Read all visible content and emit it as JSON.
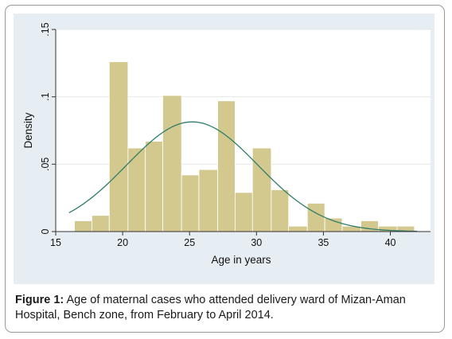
{
  "caption": {
    "label": "Figure 1:",
    "text": "Age of maternal cases who attended delivery ward of Mizan-Aman Hospital, Bench zone, from February to April 2014."
  },
  "chart_data": {
    "type": "bar",
    "subtype": "histogram",
    "xlabel": "Age in years",
    "ylabel": "Density",
    "xlim": [
      15,
      43
    ],
    "ylim": [
      0,
      0.15
    ],
    "x_ticks": [
      15,
      20,
      25,
      30,
      35,
      40
    ],
    "x_tick_labels": [
      "15",
      "20",
      "25",
      "30",
      "35",
      "40"
    ],
    "y_ticks": [
      0,
      0.05,
      0.1,
      0.15
    ],
    "y_tick_labels": [
      "0",
      ".05",
      ".1",
      ".15"
    ],
    "grid": true,
    "bar_color": "#d3c98f",
    "curve_color": "#2f7d6a",
    "bins": [
      {
        "start": 16.4,
        "end": 17.7,
        "value": 0.008
      },
      {
        "start": 17.7,
        "end": 19.0,
        "value": 0.012
      },
      {
        "start": 19.0,
        "end": 20.4,
        "value": 0.126
      },
      {
        "start": 20.4,
        "end": 21.7,
        "value": 0.062
      },
      {
        "start": 21.7,
        "end": 23.0,
        "value": 0.067
      },
      {
        "start": 23.0,
        "end": 24.4,
        "value": 0.101
      },
      {
        "start": 24.4,
        "end": 25.7,
        "value": 0.042
      },
      {
        "start": 25.7,
        "end": 27.1,
        "value": 0.046
      },
      {
        "start": 27.1,
        "end": 28.4,
        "value": 0.097
      },
      {
        "start": 28.4,
        "end": 29.7,
        "value": 0.029
      },
      {
        "start": 29.7,
        "end": 31.1,
        "value": 0.062
      },
      {
        "start": 31.1,
        "end": 32.4,
        "value": 0.031
      },
      {
        "start": 32.4,
        "end": 33.8,
        "value": 0.004
      },
      {
        "start": 33.8,
        "end": 35.1,
        "value": 0.021
      },
      {
        "start": 35.1,
        "end": 36.4,
        "value": 0.01
      },
      {
        "start": 36.4,
        "end": 37.8,
        "value": 0.004
      },
      {
        "start": 37.8,
        "end": 39.1,
        "value": 0.008
      },
      {
        "start": 39.1,
        "end": 40.5,
        "value": 0.004
      },
      {
        "start": 40.5,
        "end": 41.8,
        "value": 0.004
      }
    ],
    "normal_curve": {
      "mean": 25.2,
      "sd": 4.9,
      "x_range": [
        16,
        42
      ]
    }
  }
}
